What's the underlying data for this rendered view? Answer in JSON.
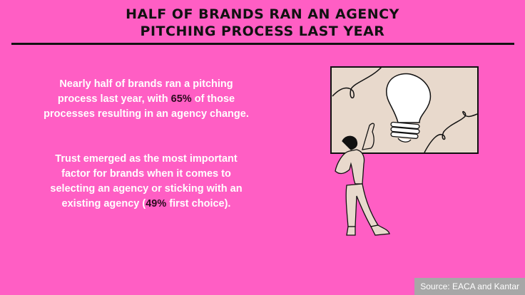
{
  "title_line1": "HALF OF BRANDS RAN AN AGENCY",
  "title_line2": "PITCHING PROCESS LAST YEAR",
  "paragraph1": {
    "before": "Nearly half of brands ran a pitching process last year, with ",
    "highlight": "65%",
    "after": " of those processes resulting in an agency change."
  },
  "paragraph2": {
    "before": "Trust emerged as the most important factor for brands when it comes to selecting an agency or sticking with an existing agency (",
    "highlight": "49%",
    "after": " first choice)."
  },
  "source": "Source: EACA and Kantar",
  "colors": {
    "background": "#ff5ec4",
    "highlight": "#2a0a1e",
    "board": "#e8d9cc"
  },
  "illustration": "woman-pointing-at-lightbulb-board"
}
